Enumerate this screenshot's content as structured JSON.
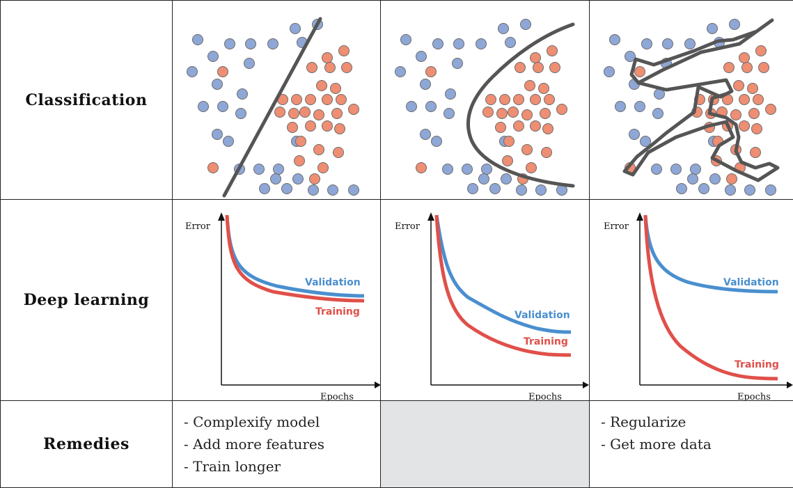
{
  "rows": {
    "classification": "Classification",
    "deep_learning": "Deep learning",
    "remedies": "Remedies"
  },
  "colors": {
    "blue_point": "#8ea7d6",
    "orange_point": "#ee8e73",
    "boundary": "#555555",
    "validation": "#4a8fcf",
    "training": "#e0504a"
  },
  "axis": {
    "y_label": "Error",
    "x_label": "Epochs"
  },
  "curves": {
    "validation_label": "Validation",
    "training_label": "Training"
  },
  "remedies": {
    "col1": [
      "- Complexify model",
      "- Add more features",
      "- Train longer"
    ],
    "col2": [],
    "col3": [
      "- Regularize",
      "- Get more data"
    ]
  }
}
